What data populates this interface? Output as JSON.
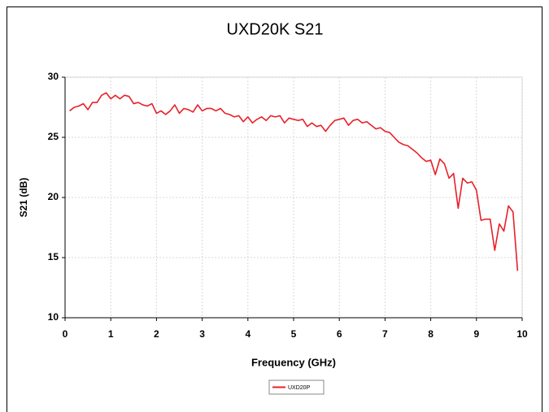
{
  "chart_data": {
    "type": "line",
    "title": "UXD20K S21",
    "x_label": "Frequency (GHz)",
    "y_label": "S21 (dB)",
    "xlim": [
      0,
      10
    ],
    "xticks": [
      0,
      1,
      2,
      3,
      4,
      5,
      6,
      7,
      8,
      9,
      10
    ],
    "ylim": [
      10,
      30
    ],
    "yticks": [
      10,
      15,
      20,
      25,
      30
    ],
    "grid": true,
    "legend": "bottom",
    "x": [
      0.1,
      0.2,
      0.3,
      0.4,
      0.5,
      0.6,
      0.7,
      0.8,
      0.9,
      1.0,
      1.1,
      1.2,
      1.3,
      1.4,
      1.5,
      1.6,
      1.7,
      1.8,
      1.9,
      2.0,
      2.1,
      2.2,
      2.3,
      2.4,
      2.5,
      2.6,
      2.7,
      2.8,
      2.9,
      3.0,
      3.1,
      3.2,
      3.3,
      3.4,
      3.5,
      3.6,
      3.7,
      3.8,
      3.9,
      4.0,
      4.1,
      4.2,
      4.3,
      4.4,
      4.5,
      4.6,
      4.7,
      4.8,
      4.9,
      5.0,
      5.1,
      5.2,
      5.3,
      5.4,
      5.5,
      5.6,
      5.7,
      5.8,
      5.9,
      6.0,
      6.1,
      6.2,
      6.3,
      6.4,
      6.5,
      6.6,
      6.7,
      6.8,
      6.9,
      7.0,
      7.1,
      7.2,
      7.3,
      7.4,
      7.5,
      7.6,
      7.7,
      7.8,
      7.9,
      8.0,
      8.1,
      8.2,
      8.3,
      8.4,
      8.5,
      8.6,
      8.7,
      8.8,
      8.9,
      9.0,
      9.1,
      9.2,
      9.3,
      9.4,
      9.5,
      9.6,
      9.7,
      9.8,
      9.9
    ],
    "series": [
      {
        "name": "UXD20P",
        "color": "#e8202a",
        "values": [
          27.2,
          27.5,
          27.6,
          27.8,
          27.3,
          27.9,
          27.9,
          28.5,
          28.7,
          28.2,
          28.5,
          28.2,
          28.5,
          28.4,
          27.8,
          27.9,
          27.7,
          27.6,
          27.8,
          27.0,
          27.2,
          26.9,
          27.2,
          27.7,
          27.0,
          27.4,
          27.3,
          27.1,
          27.7,
          27.2,
          27.4,
          27.4,
          27.2,
          27.4,
          27.0,
          26.9,
          26.7,
          26.8,
          26.3,
          26.7,
          26.2,
          26.5,
          26.7,
          26.4,
          26.8,
          26.7,
          26.8,
          26.2,
          26.6,
          26.5,
          26.4,
          26.5,
          25.9,
          26.2,
          25.9,
          26.0,
          25.5,
          26.0,
          26.4,
          26.5,
          26.6,
          26.0,
          26.4,
          26.5,
          26.2,
          26.3,
          26.0,
          25.7,
          25.8,
          25.5,
          25.4,
          25.0,
          24.6,
          24.4,
          24.3,
          24.0,
          23.7,
          23.3,
          23.0,
          23.1,
          21.9,
          23.2,
          22.8,
          21.6,
          22.0,
          19.1,
          21.6,
          21.2,
          21.3,
          20.6,
          18.1,
          18.2,
          18.2,
          15.6,
          17.8,
          17.2,
          19.3,
          18.8,
          13.9
        ]
      }
    ]
  }
}
